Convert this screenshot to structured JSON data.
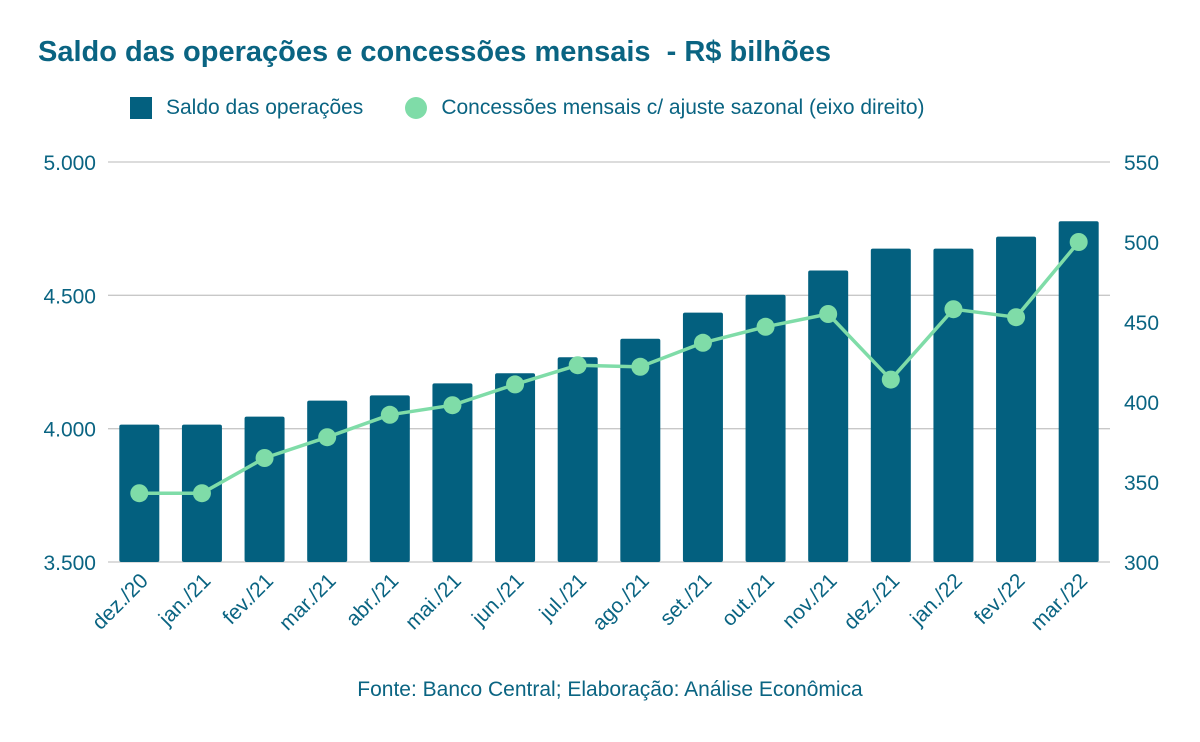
{
  "chart_data": {
    "type": "bar",
    "title": "Saldo das operações e concessões mensais  - R$ bilhões",
    "categories": [
      "dez./20",
      "jan./21",
      "fev./21",
      "mar./21",
      "abr./21",
      "mai./21",
      "jun./21",
      "jul./21",
      "ago./21",
      "set./21",
      "out./21",
      "nov./21",
      "dez./21",
      "jan./22",
      "fev./22",
      "mar./22"
    ],
    "series": [
      {
        "name": "Saldo das operações",
        "type": "bar",
        "axis": "left",
        "color": "#03607f",
        "values": [
          4015,
          4015,
          4045,
          4105,
          4125,
          4170,
          4208,
          4268,
          4337,
          4435,
          4502,
          4593,
          4675,
          4675,
          4720,
          4778
        ]
      },
      {
        "name": "Concessões mensais c/ ajuste sazonal (eixo direito)",
        "type": "line",
        "axis": "right",
        "color": "#7fdca8",
        "values": [
          343,
          343,
          365,
          378,
          392,
          398,
          411,
          423,
          422,
          437,
          447,
          455,
          414,
          458,
          453,
          500
        ]
      }
    ],
    "y_left": {
      "min": 3500,
      "max": 5000,
      "ticks": [
        "3.500",
        "4.000",
        "4.500",
        "5.000"
      ]
    },
    "y_right": {
      "min": 300,
      "max": 550,
      "ticks": [
        "300",
        "350",
        "400",
        "450",
        "500",
        "550"
      ]
    },
    "grid": true,
    "legend_position": "top",
    "source": "Fonte: Banco Central; Elaboração: Análise Econômica",
    "text_color": "#0a6482",
    "grid_color": "#c8c8c8"
  }
}
